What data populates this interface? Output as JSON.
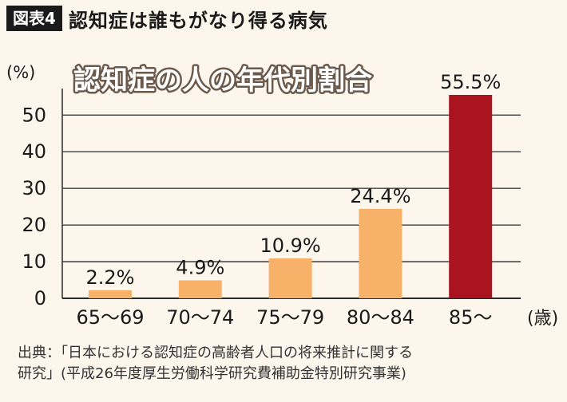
{
  "header": {
    "figure_label": "図表4",
    "title": "認知症は誰もがなり得る病気"
  },
  "chart_data": {
    "type": "bar",
    "title": "認知症の人の年代別割合",
    "ylabel": "(%)",
    "xlabel": "(歳)",
    "categories": [
      "65〜69",
      "70〜74",
      "75〜79",
      "80〜84",
      "85〜"
    ],
    "values": [
      2.2,
      4.9,
      10.9,
      24.4,
      55.5
    ],
    "data_labels": [
      "2.2%",
      "4.9%",
      "10.9%",
      "24.4%",
      "55.5%"
    ],
    "ylim": [
      0,
      55.5
    ],
    "yticks": [
      0,
      10,
      20,
      30,
      40,
      50
    ],
    "grid": true,
    "colors": {
      "bar": "#f8b169",
      "highlight_bar": "#a9141e",
      "grid": "#2a2a2a",
      "title_fill": "#ffffff",
      "title_stroke": "#6b5a4c"
    },
    "highlight_index": 4
  },
  "source": {
    "line1": "出典：「日本における認知症の高齢者人口の将来推計に関する",
    "line2": "研究」(平成26年度厚生労働科学研究費補助金特別研究事業)"
  }
}
